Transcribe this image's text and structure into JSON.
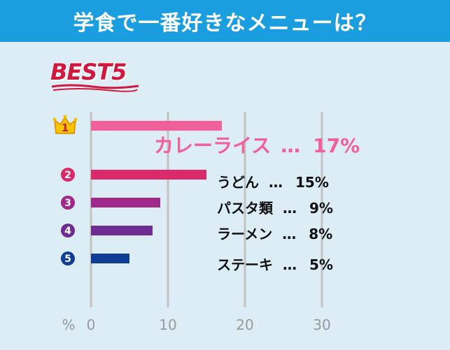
{
  "header": {
    "title": "学食で一番好きなメニューは？"
  },
  "badge": {
    "text": "BEST5"
  },
  "colors": {
    "header_bg": "#1a9ee0",
    "background": "#dcedf5",
    "grid": "#c3c3c3",
    "rank_colors": [
      "#f2609a",
      "#d92b6b",
      "#a0288a",
      "#6f2c91",
      "#0f3d96"
    ]
  },
  "chart_data": {
    "type": "bar",
    "orientation": "horizontal",
    "unit_label": "%",
    "xlim": [
      0,
      35
    ],
    "xticks": [
      "0",
      "10",
      "20",
      "30"
    ],
    "xtick_values": [
      0,
      10,
      20,
      30
    ],
    "categories": [
      "カレーライス",
      "うどん",
      "パスタ類",
      "ラーメン",
      "ステーキ"
    ],
    "values": [
      17,
      15,
      9,
      8,
      5
    ],
    "value_labels": [
      "17%",
      "15%",
      "9%",
      "8%",
      "5%"
    ],
    "ranks": [
      "1",
      "2",
      "3",
      "4",
      "5"
    ],
    "separator": "…",
    "grid": true
  }
}
